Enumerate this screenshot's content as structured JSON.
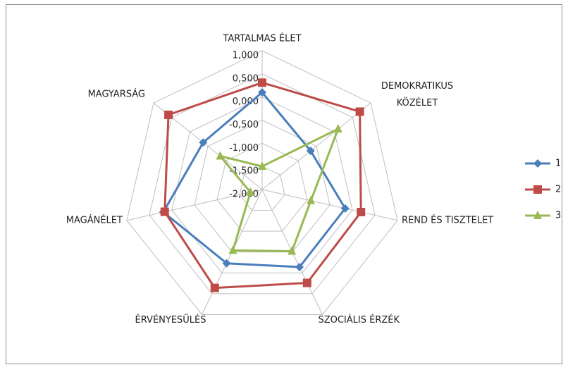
{
  "chart_data": {
    "type": "radar",
    "categories": [
      "TARTALMAS ÉLET",
      "DEMOKRATIKUS KÖZÉLET",
      "REND ÉS TISZTELET",
      "SZOCIÁLIS ÉRZÉK",
      "ÉRVÉNYESÜLÉS",
      "MAGÁNÉLET",
      "MAGYARSÁG"
    ],
    "series": [
      {
        "name": "1",
        "color": "#4a7ebb",
        "marker": "diamond",
        "values": [
          0.1,
          -0.66,
          -0.16,
          -0.14,
          -0.23,
          0.19,
          -0.37
        ]
      },
      {
        "name": "2",
        "color": "#be4b48",
        "marker": "square",
        "values": [
          0.31,
          0.7,
          0.19,
          0.24,
          0.36,
          0.16,
          0.59
        ]
      },
      {
        "name": "3",
        "color": "#98b954",
        "marker": "triangle",
        "values": [
          -1.5,
          0.1,
          -0.92,
          -0.52,
          -0.54,
          -1.74,
          -0.84
        ]
      }
    ],
    "ylim": [
      -2,
      1
    ],
    "yticks": [
      {
        "value": 1,
        "label": "1,000"
      },
      {
        "value": 0.5,
        "label": "0,500"
      },
      {
        "value": 0,
        "label": "0,000"
      },
      {
        "value": -0.5,
        "label": "-0,500"
      },
      {
        "value": -1,
        "label": "-1,000"
      },
      {
        "value": -1.5,
        "label": "-1,500"
      },
      {
        "value": -2,
        "label": "-2,000"
      }
    ],
    "grid": true,
    "legend": "right"
  }
}
